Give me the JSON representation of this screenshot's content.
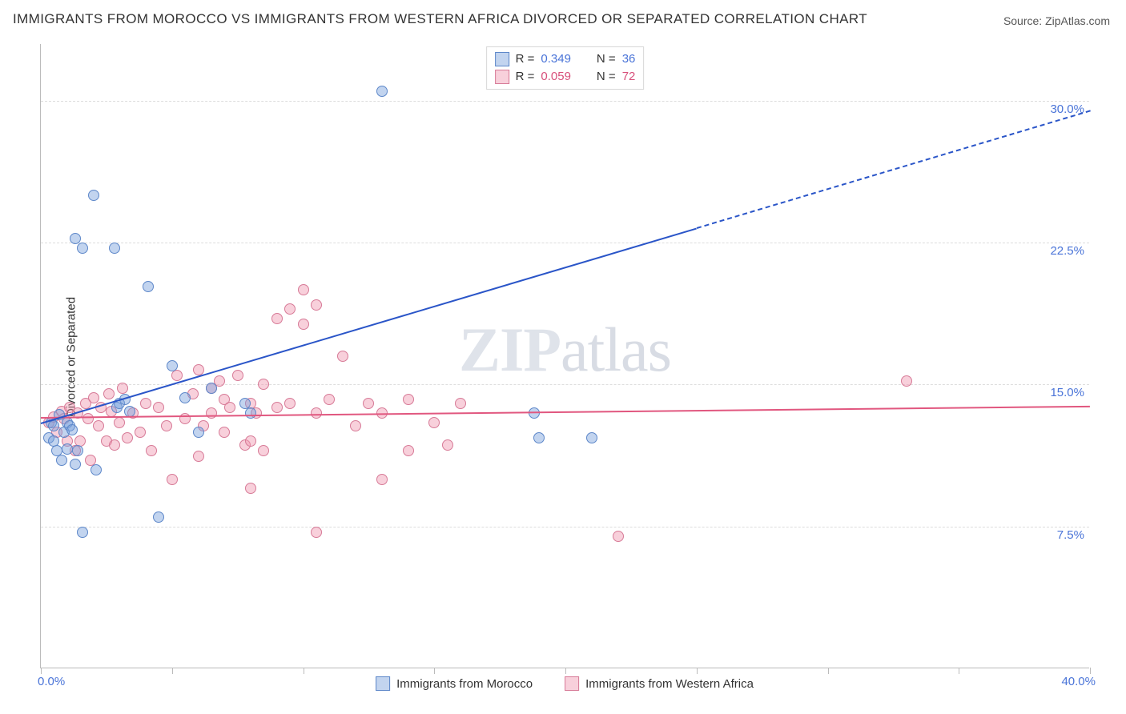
{
  "chart": {
    "type": "scatter",
    "title": "IMMIGRANTS FROM MOROCCO VS IMMIGRANTS FROM WESTERN AFRICA DIVORCED OR SEPARATED CORRELATION CHART",
    "source_label": "Source: ZipAtlas.com",
    "ylabel": "Divorced or Separated",
    "watermark": {
      "part1": "ZIP",
      "part2": "atlas"
    },
    "xlim": [
      0,
      40
    ],
    "ylim": [
      0,
      33
    ],
    "xtick_positions": [
      0,
      5,
      10,
      15,
      20,
      25,
      30,
      35,
      40
    ],
    "xtick_labels": {
      "first": "0.0%",
      "last": "40.0%"
    },
    "grid_h": [
      {
        "y": 7.5,
        "label": "7.5%"
      },
      {
        "y": 15.0,
        "label": "15.0%"
      },
      {
        "y": 22.5,
        "label": "22.5%"
      },
      {
        "y": 30.0,
        "label": "30.0%"
      }
    ],
    "colors": {
      "series_a_fill": "rgba(120,160,220,0.45)",
      "series_a_stroke": "#5d87c9",
      "series_b_fill": "rgba(240,150,175,0.45)",
      "series_b_stroke": "#d77a97",
      "trend_a": "#2a55c8",
      "trend_b": "#e1577f",
      "grid": "#dddddd",
      "axis": "#bbbbbb",
      "tick_text": "#4a74d8",
      "ytick_text_a": "#4a74d8",
      "ytick_text_b": "#d8507b",
      "title_text": "#333333",
      "source_text": "#555555"
    },
    "legend_top": {
      "rows": [
        {
          "series": "a",
          "r_label": "R =",
          "r_value": "0.349",
          "n_label": "N =",
          "n_value": "36"
        },
        {
          "series": "b",
          "r_label": "R =",
          "r_value": "0.059",
          "n_label": "N =",
          "n_value": "72"
        }
      ]
    },
    "legend_bottom": [
      {
        "series": "a",
        "label": "Immigrants from Morocco"
      },
      {
        "series": "b",
        "label": "Immigrants from Western Africa"
      }
    ],
    "trend_lines": {
      "a": {
        "start": [
          0,
          13.0
        ],
        "end": [
          25,
          23.3
        ],
        "dashed_end": [
          40,
          29.5
        ]
      },
      "b": {
        "start": [
          0,
          13.3
        ],
        "end": [
          40,
          13.9
        ]
      }
    },
    "series_a_points": [
      [
        0.3,
        12.2
      ],
      [
        0.4,
        13.0
      ],
      [
        0.5,
        12.0
      ],
      [
        0.5,
        12.8
      ],
      [
        0.6,
        11.5
      ],
      [
        0.7,
        13.4
      ],
      [
        0.8,
        11.0
      ],
      [
        0.9,
        12.5
      ],
      [
        1.0,
        13.0
      ],
      [
        1.0,
        11.6
      ],
      [
        1.1,
        12.8
      ],
      [
        1.2,
        12.6
      ],
      [
        1.3,
        10.8
      ],
      [
        1.3,
        22.7
      ],
      [
        1.4,
        11.5
      ],
      [
        1.6,
        22.2
      ],
      [
        1.6,
        7.2
      ],
      [
        2.0,
        25.0
      ],
      [
        2.1,
        10.5
      ],
      [
        2.8,
        22.2
      ],
      [
        2.9,
        13.8
      ],
      [
        3.0,
        14.0
      ],
      [
        3.2,
        14.2
      ],
      [
        3.4,
        13.6
      ],
      [
        4.1,
        20.2
      ],
      [
        4.5,
        8.0
      ],
      [
        5.0,
        16.0
      ],
      [
        5.5,
        14.3
      ],
      [
        6.0,
        12.5
      ],
      [
        6.5,
        14.8
      ],
      [
        7.8,
        14.0
      ],
      [
        8.0,
        13.5
      ],
      [
        13.0,
        30.5
      ],
      [
        18.8,
        13.5
      ],
      [
        19.0,
        12.2
      ],
      [
        21.0,
        12.2
      ]
    ],
    "series_b_points": [
      [
        0.3,
        13.0
      ],
      [
        0.5,
        13.3
      ],
      [
        0.6,
        12.5
      ],
      [
        0.8,
        13.6
      ],
      [
        0.9,
        13.2
      ],
      [
        1.0,
        12.0
      ],
      [
        1.1,
        13.8
      ],
      [
        1.3,
        11.5
      ],
      [
        1.4,
        13.5
      ],
      [
        1.5,
        12.0
      ],
      [
        1.7,
        14.0
      ],
      [
        1.8,
        13.2
      ],
      [
        1.9,
        11.0
      ],
      [
        2.0,
        14.3
      ],
      [
        2.2,
        12.8
      ],
      [
        2.3,
        13.8
      ],
      [
        2.5,
        12.0
      ],
      [
        2.6,
        14.5
      ],
      [
        2.7,
        13.6
      ],
      [
        2.8,
        11.8
      ],
      [
        3.0,
        13.0
      ],
      [
        3.1,
        14.8
      ],
      [
        3.3,
        12.2
      ],
      [
        3.5,
        13.5
      ],
      [
        3.8,
        12.5
      ],
      [
        4.0,
        14.0
      ],
      [
        4.2,
        11.5
      ],
      [
        4.5,
        13.8
      ],
      [
        4.8,
        12.8
      ],
      [
        5.0,
        10.0
      ],
      [
        5.2,
        15.5
      ],
      [
        5.5,
        13.2
      ],
      [
        5.8,
        14.5
      ],
      [
        6.0,
        15.8
      ],
      [
        6.0,
        11.2
      ],
      [
        6.2,
        12.8
      ],
      [
        6.5,
        14.8
      ],
      [
        6.5,
        13.5
      ],
      [
        6.8,
        15.2
      ],
      [
        7.0,
        14.2
      ],
      [
        7.0,
        12.5
      ],
      [
        7.2,
        13.8
      ],
      [
        7.5,
        15.5
      ],
      [
        7.8,
        11.8
      ],
      [
        8.0,
        14.0
      ],
      [
        8.0,
        9.5
      ],
      [
        8.0,
        12.0
      ],
      [
        8.2,
        13.5
      ],
      [
        8.5,
        15.0
      ],
      [
        8.5,
        11.5
      ],
      [
        9.0,
        18.5
      ],
      [
        9.0,
        13.8
      ],
      [
        9.5,
        14.0
      ],
      [
        9.5,
        19.0
      ],
      [
        10.0,
        18.2
      ],
      [
        10.0,
        20.0
      ],
      [
        10.5,
        13.5
      ],
      [
        10.5,
        7.2
      ],
      [
        10.5,
        19.2
      ],
      [
        11.0,
        14.2
      ],
      [
        11.5,
        16.5
      ],
      [
        12.0,
        12.8
      ],
      [
        12.5,
        14.0
      ],
      [
        13.0,
        13.5
      ],
      [
        13.0,
        10.0
      ],
      [
        14.0,
        11.5
      ],
      [
        14.0,
        14.2
      ],
      [
        15.0,
        13.0
      ],
      [
        15.5,
        11.8
      ],
      [
        16.0,
        14.0
      ],
      [
        22.0,
        7.0
      ],
      [
        33.0,
        15.2
      ]
    ]
  }
}
